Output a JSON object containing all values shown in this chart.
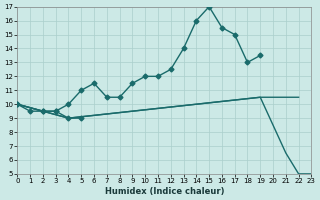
{
  "xlabel": "Humidex (Indice chaleur)",
  "background_color": "#cce9e6",
  "grid_color": "#aacfcc",
  "line_color": "#1a6b6b",
  "xlim": [
    0,
    23
  ],
  "ylim": [
    5,
    17
  ],
  "xticks": [
    0,
    1,
    2,
    3,
    4,
    5,
    6,
    7,
    8,
    9,
    10,
    11,
    12,
    13,
    14,
    15,
    16,
    17,
    18,
    19,
    20,
    21,
    22,
    23
  ],
  "yticks": [
    5,
    6,
    7,
    8,
    9,
    10,
    11,
    12,
    13,
    14,
    15,
    16,
    17
  ],
  "line1_x": [
    0,
    1,
    2,
    3,
    4,
    5
  ],
  "line1_y": [
    10,
    9.5,
    9.5,
    9.5,
    9.0,
    9.0
  ],
  "line2_x": [
    0,
    2,
    3,
    4,
    5,
    6,
    7,
    8,
    9,
    10,
    11,
    12,
    13,
    14,
    15,
    16,
    17,
    18,
    19
  ],
  "line2_y": [
    10,
    9.5,
    9.5,
    10.0,
    11.0,
    11.5,
    10.5,
    10.5,
    11.5,
    12.0,
    12.0,
    12.5,
    14.0,
    16.0,
    17.0,
    15.5,
    15.0,
    13.0,
    13.5
  ],
  "line3_x": [
    0,
    4,
    19,
    20,
    21,
    22,
    23
  ],
  "line3_y": [
    10,
    9.0,
    10.5,
    8.5,
    6.5,
    5.0,
    5.0
  ],
  "line4_x": [
    0,
    4,
    19,
    20,
    21,
    22
  ],
  "line4_y": [
    10,
    9.0,
    10.5,
    10.5,
    10.5,
    10.5
  ]
}
